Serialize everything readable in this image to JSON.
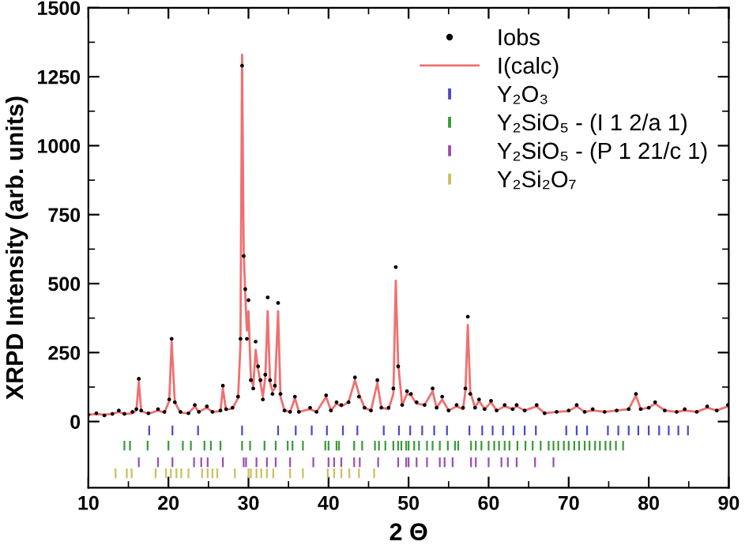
{
  "chart_data": {
    "type": "scatter",
    "xlabel": "2 Θ",
    "ylabel": "XRPD Intensity (arb. units)",
    "xlim": [
      10,
      90
    ],
    "xticks": [
      10,
      20,
      30,
      40,
      50,
      60,
      70,
      80,
      90
    ],
    "ylim": [
      -240,
      1500
    ],
    "yticks": [
      0,
      250,
      500,
      750,
      1000,
      1250,
      1500
    ],
    "grid": false,
    "legend": "top right",
    "series": [
      {
        "name": "Iobs",
        "marker": "circle",
        "color": "#000000",
        "x": [
          10,
          11,
          12,
          13,
          13.8,
          14.5,
          15.5,
          16.0,
          16.3,
          16.6,
          17.5,
          18.7,
          19.5,
          20.1,
          20.4,
          20.8,
          21.5,
          22.5,
          23.3,
          23.8,
          24.8,
          25.5,
          26.5,
          26.8,
          27.2,
          28.0,
          28.7,
          29.0,
          29.2,
          29.4,
          29.6,
          29.8,
          30.0,
          30.3,
          30.6,
          30.9,
          31.2,
          31.5,
          31.8,
          32.1,
          32.4,
          32.7,
          33.0,
          33.3,
          33.7,
          34.0,
          34.5,
          35.2,
          35.8,
          36.3,
          37.7,
          38.5,
          39.7,
          40.3,
          41.0,
          41.6,
          42.5,
          43.3,
          43.8,
          44.5,
          45.3,
          46.1,
          46.6,
          47.5,
          48.1,
          48.4,
          48.7,
          49.2,
          49.8,
          50.3,
          51.0,
          52.0,
          53.0,
          53.5,
          54.2,
          55.0,
          56.0,
          56.8,
          57.1,
          57.4,
          57.7,
          58.3,
          58.8,
          59.5,
          60.3,
          61.0,
          62.0,
          63.0,
          63.5,
          64.5,
          66.0,
          67.0,
          68.5,
          70.0,
          71.0,
          72.0,
          73.0,
          74.5,
          76.0,
          77.5,
          78.4,
          79.0,
          80.0,
          80.8,
          82.0,
          83.5,
          84.5,
          86.0,
          87.3,
          88.5,
          89.9
        ],
        "values": [
          25,
          30,
          22,
          28,
          40,
          28,
          35,
          45,
          155,
          40,
          30,
          45,
          35,
          80,
          300,
          70,
          35,
          30,
          60,
          35,
          55,
          35,
          40,
          130,
          45,
          50,
          90,
          300,
          1290,
          600,
          480,
          300,
          440,
          150,
          120,
          290,
          200,
          150,
          80,
          170,
          450,
          150,
          100,
          130,
          430,
          100,
          40,
          35,
          90,
          35,
          50,
          35,
          95,
          40,
          70,
          60,
          70,
          160,
          90,
          50,
          40,
          150,
          50,
          50,
          120,
          560,
          200,
          60,
          110,
          100,
          70,
          60,
          120,
          50,
          90,
          40,
          60,
          50,
          120,
          380,
          100,
          50,
          80,
          45,
          75,
          40,
          60,
          45,
          60,
          40,
          60,
          30,
          35,
          40,
          60,
          35,
          45,
          35,
          40,
          45,
          100,
          45,
          50,
          70,
          40,
          35,
          45,
          35,
          55,
          40,
          60
        ]
      },
      {
        "name": "I(calc)",
        "type": "line",
        "color": "#f07070",
        "x": [
          10,
          11,
          12,
          13,
          13.8,
          14.5,
          15.5,
          16.0,
          16.3,
          16.6,
          17.5,
          18.7,
          19.5,
          20.1,
          20.4,
          20.8,
          21.5,
          22.5,
          23.3,
          23.8,
          24.8,
          25.5,
          26.5,
          26.8,
          27.2,
          28.0,
          28.7,
          29.0,
          29.2,
          29.4,
          29.6,
          29.8,
          30.0,
          30.3,
          30.6,
          30.9,
          31.2,
          31.5,
          31.8,
          32.1,
          32.4,
          32.7,
          33.0,
          33.3,
          33.7,
          34.0,
          34.5,
          35.2,
          35.8,
          36.3,
          37.7,
          38.5,
          39.7,
          40.3,
          41.0,
          41.6,
          42.5,
          43.3,
          43.8,
          44.5,
          45.3,
          46.1,
          46.6,
          47.5,
          48.1,
          48.4,
          48.7,
          49.2,
          49.8,
          50.3,
          51.0,
          52.0,
          53.0,
          53.5,
          54.2,
          55.0,
          56.0,
          56.8,
          57.1,
          57.4,
          57.7,
          58.3,
          58.8,
          59.5,
          60.3,
          61.0,
          62.0,
          63.0,
          63.5,
          64.5,
          66.0,
          67.0,
          68.5,
          70.0,
          71.0,
          72.0,
          73.0,
          74.5,
          76.0,
          77.5,
          78.4,
          79.0,
          80.0,
          80.8,
          82.0,
          83.5,
          84.5,
          86.0,
          87.3,
          88.5,
          89.9
        ],
        "values": [
          25,
          27,
          25,
          28,
          35,
          27,
          30,
          40,
          145,
          38,
          28,
          40,
          32,
          75,
          290,
          70,
          32,
          30,
          55,
          35,
          50,
          35,
          38,
          120,
          42,
          48,
          85,
          280,
          1330,
          620,
          460,
          330,
          400,
          160,
          130,
          260,
          190,
          140,
          90,
          160,
          400,
          140,
          110,
          120,
          400,
          90,
          40,
          35,
          85,
          35,
          45,
          35,
          90,
          40,
          65,
          55,
          70,
          150,
          100,
          50,
          40,
          140,
          50,
          45,
          100,
          510,
          210,
          60,
          100,
          95,
          65,
          60,
          110,
          50,
          80,
          40,
          55,
          45,
          110,
          350,
          110,
          50,
          75,
          45,
          70,
          40,
          55,
          45,
          55,
          40,
          55,
          30,
          35,
          38,
          55,
          35,
          40,
          35,
          40,
          45,
          95,
          45,
          50,
          65,
          40,
          35,
          40,
          35,
          50,
          40,
          55
        ]
      },
      {
        "name": "Y₂O₃",
        "type": "bar",
        "color": "#4a4ac8",
        "base": [
          -50,
          -50,
          -50,
          -50,
          -50,
          -50,
          -50,
          -50,
          -50,
          -50,
          -50,
          -50,
          -50,
          -50,
          -50,
          -50,
          -50,
          -50,
          -50,
          -50,
          -50,
          -50,
          -50,
          -50,
          -50,
          -50,
          -50,
          -50,
          -50,
          -50,
          -50,
          -50,
          -50,
          -50,
          -50
        ],
        "x": [
          17.6,
          20.5,
          23.7,
          29.2,
          33.7,
          35.9,
          37.9,
          39.8,
          41.8,
          43.6,
          46.9,
          48.8,
          50.2,
          51.7,
          53.2,
          54.8,
          57.6,
          59.2,
          60.5,
          61.8,
          63.1,
          64.5,
          65.9,
          69.7,
          71.0,
          72.3,
          74.9,
          76.2,
          77.5,
          78.7,
          80.0,
          81.3,
          82.5,
          83.7,
          84.9
        ],
        "values": [
          35,
          35,
          35,
          35,
          35,
          35,
          35,
          35,
          35,
          35,
          35,
          35,
          35,
          35,
          35,
          35,
          35,
          35,
          35,
          35,
          35,
          35,
          35,
          35,
          35,
          35,
          35,
          35,
          35,
          35,
          35,
          35,
          35,
          35,
          35
        ]
      },
      {
        "name": "Y₂SiO₅ - (I 1 2/a 1)",
        "type": "bar",
        "color": "#3a9a3a",
        "base": [
          -105,
          -105,
          -105,
          -105,
          -105,
          -105,
          -105,
          -105,
          -105,
          -105,
          -105,
          -105,
          -105,
          -105,
          -105,
          -105,
          -105,
          -105,
          -105,
          -105,
          -105,
          -105,
          -105,
          -105,
          -105,
          -105,
          -105,
          -105,
          -105,
          -105,
          -105,
          -105,
          -105,
          -105,
          -105,
          -105,
          -105,
          -105,
          -105,
          -105,
          -105,
          -105,
          -105,
          -105,
          -105,
          -105,
          -105,
          -105,
          -105,
          -105,
          -105,
          -105,
          -105,
          -105,
          -105,
          -105,
          -105,
          -105,
          -105,
          -105,
          -105,
          -105,
          -105,
          -105,
          -105
        ],
        "x": [
          14.5,
          15.2,
          17.4,
          20.0,
          21.8,
          22.8,
          24.5,
          25.3,
          26.5,
          29.2,
          30.2,
          32.0,
          33.4,
          34.9,
          35.5,
          36.8,
          39.6,
          40.0,
          41.0,
          41.3,
          43.2,
          44.2,
          45.8,
          46.3,
          47.1,
          48.1,
          48.7,
          49.1,
          49.7,
          50.0,
          50.7,
          51.3,
          52.3,
          53.0,
          53.9,
          54.9,
          55.8,
          56.2,
          57.8,
          58.4,
          59.1,
          60.0,
          60.7,
          61.3,
          62.0,
          62.6,
          63.6,
          64.6,
          65.5,
          66.5,
          67.5,
          68.1,
          68.7,
          69.4,
          70.0,
          70.7,
          71.3,
          72.0,
          72.6,
          73.3,
          73.9,
          74.6,
          75.2,
          75.9,
          76.8
        ],
        "values": [
          35,
          35,
          35,
          35,
          35,
          35,
          35,
          35,
          35,
          35,
          35,
          35,
          35,
          35,
          35,
          35,
          35,
          35,
          35,
          35,
          35,
          35,
          35,
          35,
          35,
          35,
          35,
          35,
          35,
          35,
          35,
          35,
          35,
          35,
          35,
          35,
          35,
          35,
          35,
          35,
          35,
          35,
          35,
          35,
          35,
          35,
          35,
          35,
          35,
          35,
          35,
          35,
          35,
          35,
          35,
          35,
          35,
          35,
          35,
          35,
          35,
          35,
          35,
          35,
          35
        ]
      },
      {
        "name": "Y₂SiO₅ - (P 1 21/c 1)",
        "type": "bar",
        "color": "#9b4fb0",
        "base": [
          -165,
          -165,
          -165,
          -165,
          -165,
          -165,
          -165,
          -165,
          -165,
          -165,
          -165,
          -165,
          -165,
          -165,
          -165,
          -165,
          -165,
          -165,
          -165,
          -165,
          -165,
          -165,
          -165,
          -165,
          -165,
          -165,
          -165,
          -165,
          -165,
          -165,
          -165,
          -165,
          -165,
          -165,
          -165,
          -165
        ],
        "x": [
          16.3,
          18.7,
          20.5,
          23.2,
          24.1,
          24.9,
          26.8,
          29.4,
          29.7,
          31.0,
          32.3,
          33.4,
          35.2,
          38.1,
          40.0,
          40.7,
          41.6,
          43.2,
          43.9,
          46.2,
          48.7,
          49.7,
          50.0,
          51.0,
          52.3,
          53.9,
          54.5,
          55.5,
          57.8,
          58.4,
          60.0,
          61.6,
          62.4,
          63.5,
          65.8,
          68.1
        ],
        "values": [
          35,
          35,
          35,
          35,
          35,
          35,
          35,
          35,
          35,
          35,
          35,
          35,
          35,
          35,
          35,
          35,
          35,
          35,
          35,
          35,
          35,
          35,
          35,
          35,
          35,
          35,
          35,
          35,
          35,
          35,
          35,
          35,
          35,
          35,
          35,
          35
        ]
      },
      {
        "name": "Y₂Si₂O₇",
        "type": "bar",
        "color": "#c8c060",
        "base": [
          -205,
          -205,
          -205,
          -205,
          -205,
          -205,
          -205,
          -205,
          -205,
          -205,
          -205,
          -205,
          -205,
          -205,
          -205,
          -205,
          -205,
          -205,
          -205,
          -205,
          -205,
          -205,
          -205,
          -205,
          -205,
          -205,
          -205,
          -205
        ],
        "x": [
          13.4,
          14.8,
          15.4,
          18.4,
          19.7,
          20.3,
          21.0,
          21.6,
          22.5,
          24.2,
          24.9,
          25.5,
          26.1,
          28.3,
          30.0,
          30.3,
          31.0,
          31.6,
          32.3,
          33.1,
          35.2,
          36.8,
          39.9,
          40.7,
          41.6,
          42.6,
          43.8,
          45.7
        ],
        "values": [
          35,
          35,
          35,
          35,
          35,
          35,
          35,
          35,
          35,
          35,
          35,
          35,
          35,
          35,
          35,
          35,
          35,
          35,
          35,
          35,
          35,
          35,
          35,
          35,
          35,
          35,
          35,
          35
        ]
      }
    ]
  }
}
